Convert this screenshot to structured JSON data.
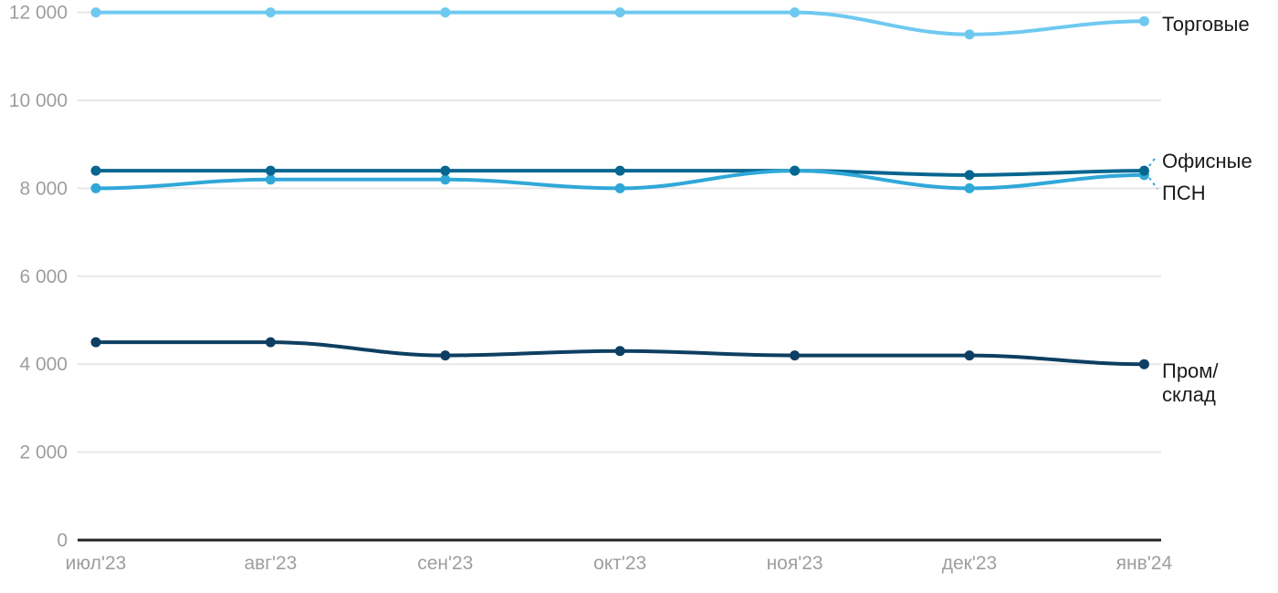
{
  "chart_data": {
    "type": "line",
    "categories": [
      "июл'23",
      "авг'23",
      "сен'23",
      "окт'23",
      "ноя'23",
      "дек'23",
      "янв'24"
    ],
    "y_ticks": [
      {
        "value": 0,
        "label": "0"
      },
      {
        "value": 2000,
        "label": "2 000"
      },
      {
        "value": 4000,
        "label": "4 000"
      },
      {
        "value": 6000,
        "label": "6 000"
      },
      {
        "value": 8000,
        "label": "8 000"
      },
      {
        "value": 10000,
        "label": "10 000"
      },
      {
        "value": 12000,
        "label": "12 000"
      }
    ],
    "ylim": [
      0,
      12000
    ],
    "grid": true,
    "legend_position": "right-of-line-end",
    "series": [
      {
        "name": "Торговые",
        "color": "#6EC9F0",
        "values": [
          12000,
          12000,
          12000,
          12000,
          12000,
          11500,
          11800
        ]
      },
      {
        "name": "Офисные",
        "color": "#076690",
        "values": [
          8400,
          8400,
          8400,
          8400,
          8400,
          8300,
          8400
        ],
        "leader_line": true
      },
      {
        "name": "ПСН",
        "color": "#2FA8D8",
        "values": [
          8000,
          8200,
          8200,
          8000,
          8400,
          8000,
          8300
        ],
        "leader_line": true
      },
      {
        "name": "Пром/склад",
        "color": "#0E3F62",
        "values": [
          4500,
          4500,
          4200,
          4300,
          4200,
          4200,
          4000
        ],
        "label_lines": [
          "Пром/",
          "склад"
        ]
      }
    ],
    "colors": {
      "grid": "#E7E7E7",
      "axis": "#262626",
      "tick_label": "#9E9E9E",
      "series_label": "#1A1A1A",
      "leader": "#2FA8D8"
    }
  }
}
